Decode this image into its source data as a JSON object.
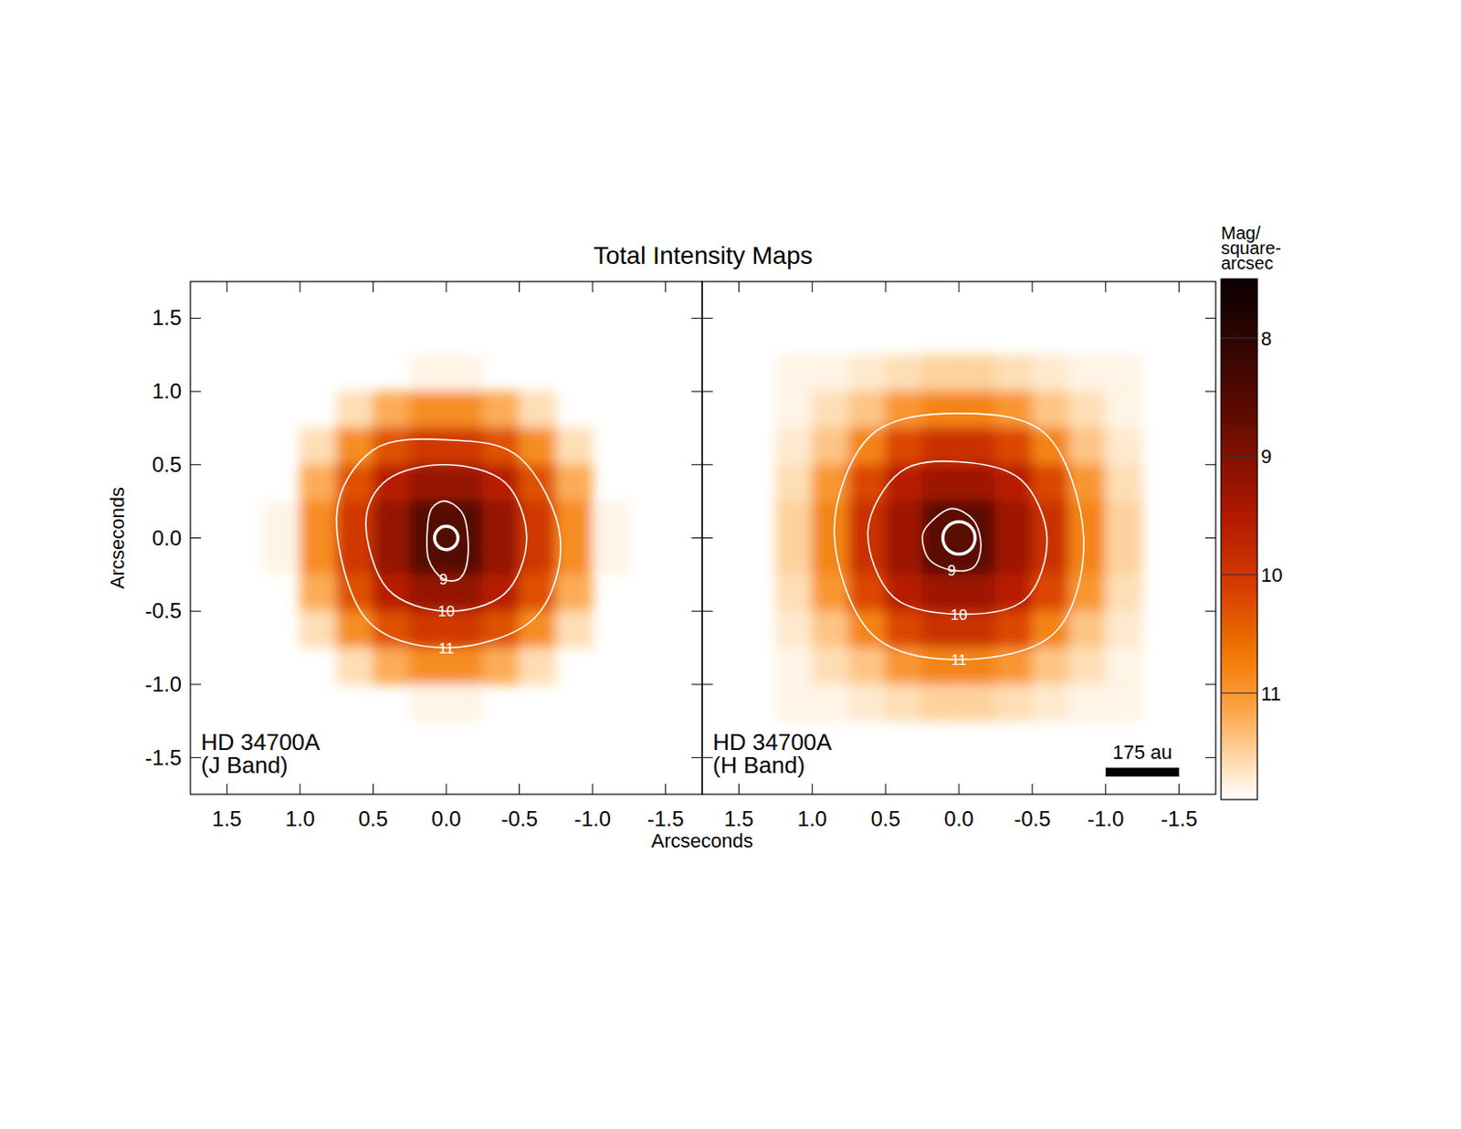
{
  "chart_data": {
    "type": "heatmap",
    "title": "Total Intensity Maps",
    "xlabel": "Arcseconds",
    "ylabel": "Arcseconds",
    "xlim": [
      1.75,
      -1.75
    ],
    "ylim": [
      -1.75,
      1.75
    ],
    "xticks": [
      1.5,
      {
        "value": 1,
        "label": "1.0"
      },
      0.5,
      {
        "value": 0,
        "label": "0.0"
      },
      -0.5,
      {
        "value": -1,
        "label": "-1.0"
      },
      -1.5
    ],
    "yticks": [
      -1.5,
      {
        "value": -1,
        "label": "-1.0"
      },
      -0.5,
      {
        "value": 0,
        "label": "0.0"
      },
      0.5,
      {
        "value": 1,
        "label": "1.0"
      },
      1.5
    ],
    "cell_x": [
      1.625,
      1.375,
      1.125,
      0.875,
      0.625,
      0.375,
      0.125,
      -0.125,
      -0.375,
      -0.625,
      -0.875,
      -1.125,
      -1.375,
      -1.625
    ],
    "cell_y": [
      1.625,
      1.375,
      1.125,
      0.875,
      0.625,
      0.375,
      0.125,
      -0.125,
      -0.375,
      -0.625,
      -0.875,
      -1.125,
      -1.375,
      -1.625
    ],
    "colorbar": {
      "title": [
        "Mag/",
        "square-",
        "arcsec"
      ],
      "range": [
        7.5,
        11.9
      ],
      "ticks": [
        8,
        9,
        10,
        11
      ]
    },
    "panels": [
      {
        "label": [
          "HD 34700A",
          "(J Band)"
        ],
        "mask_radius": 0.08,
        "cells": [
          [
            null,
            null,
            null,
            null,
            null,
            null,
            null,
            null,
            null,
            null,
            null,
            null,
            null,
            null
          ],
          [
            null,
            null,
            null,
            null,
            null,
            null,
            null,
            null,
            null,
            null,
            null,
            null,
            null,
            null
          ],
          [
            null,
            null,
            null,
            null,
            null,
            null,
            11.8,
            11.8,
            null,
            null,
            null,
            null,
            null,
            null
          ],
          [
            null,
            null,
            null,
            null,
            11.6,
            11.2,
            10.9,
            10.9,
            11.2,
            11.6,
            null,
            null,
            null,
            null
          ],
          [
            null,
            null,
            null,
            11.6,
            10.9,
            10.3,
            10.0,
            10.0,
            10.3,
            10.9,
            11.6,
            null,
            null,
            null
          ],
          [
            null,
            null,
            null,
            11.2,
            10.3,
            9.6,
            9.2,
            9.2,
            9.6,
            10.3,
            11.2,
            null,
            null,
            null
          ],
          [
            null,
            null,
            11.8,
            10.9,
            10.0,
            9.2,
            8.5,
            8.5,
            9.2,
            10.0,
            10.9,
            11.8,
            null,
            null
          ],
          [
            null,
            null,
            11.8,
            10.9,
            10.0,
            9.2,
            8.5,
            8.5,
            9.2,
            10.0,
            10.9,
            11.8,
            null,
            null
          ],
          [
            null,
            null,
            null,
            11.2,
            10.3,
            9.6,
            9.2,
            9.2,
            9.6,
            10.3,
            11.2,
            null,
            null,
            null
          ],
          [
            null,
            null,
            null,
            11.6,
            10.9,
            10.3,
            10.0,
            10.0,
            10.3,
            10.9,
            11.6,
            null,
            null,
            null
          ],
          [
            null,
            null,
            null,
            null,
            11.6,
            11.2,
            10.9,
            10.9,
            11.2,
            11.6,
            null,
            null,
            null,
            null
          ],
          [
            null,
            null,
            null,
            null,
            null,
            null,
            11.8,
            11.8,
            null,
            null,
            null,
            null,
            null,
            null
          ],
          [
            null,
            null,
            null,
            null,
            null,
            null,
            null,
            null,
            null,
            null,
            null,
            null,
            null,
            null
          ],
          [
            null,
            null,
            null,
            null,
            null,
            null,
            null,
            null,
            null,
            null,
            null,
            null,
            null,
            null
          ]
        ],
        "contours": [
          {
            "level": 9,
            "x": [
              0.13,
              0.1,
              0,
              -0.12,
              -0.15,
              -0.1,
              0.02,
              0.12
            ],
            "y": [
              0.05,
              0.2,
              0.25,
              0.15,
              -0.1,
              -0.27,
              -0.28,
              -0.15
            ]
          },
          {
            "level": 10,
            "x": [
              0.55,
              0.4,
              0,
              -0.4,
              -0.55,
              -0.4,
              0,
              0.4
            ],
            "y": [
              0.1,
              0.4,
              0.5,
              0.38,
              0,
              -0.38,
              -0.5,
              -0.35
            ]
          },
          {
            "level": 11,
            "x": [
              0.75,
              0.5,
              0,
              -0.5,
              -0.78,
              -0.6,
              0,
              0.55
            ],
            "y": [
              0.15,
              0.6,
              0.67,
              0.55,
              0,
              -0.55,
              -0.75,
              -0.55
            ]
          }
        ]
      },
      {
        "label": [
          "HD 34700A",
          "(H Band)"
        ],
        "mask_radius": 0.11,
        "scale_bar": {
          "label": "175 au",
          "length": 0.5
        },
        "cells": [
          [
            null,
            null,
            null,
            null,
            null,
            null,
            null,
            null,
            null,
            null,
            null,
            null,
            null,
            null
          ],
          [
            null,
            null,
            null,
            null,
            null,
            null,
            null,
            null,
            null,
            null,
            null,
            null,
            null,
            null
          ],
          [
            null,
            null,
            11.8,
            11.8,
            11.7,
            11.6,
            11.5,
            11.5,
            11.6,
            11.7,
            11.8,
            11.8,
            null,
            null
          ],
          [
            null,
            null,
            11.8,
            11.6,
            11.4,
            11.0,
            10.8,
            10.8,
            11.0,
            11.4,
            11.6,
            11.8,
            null,
            null
          ],
          [
            null,
            null,
            11.7,
            11.4,
            10.8,
            10.2,
            9.9,
            9.9,
            10.2,
            10.8,
            11.4,
            11.7,
            null,
            null
          ],
          [
            null,
            null,
            11.6,
            11.0,
            10.2,
            9.6,
            9.3,
            9.3,
            9.6,
            10.2,
            11.0,
            11.6,
            null,
            null
          ],
          [
            null,
            null,
            11.5,
            10.8,
            9.9,
            9.3,
            8.6,
            8.6,
            9.3,
            9.9,
            10.8,
            11.5,
            null,
            null
          ],
          [
            null,
            null,
            11.5,
            10.8,
            9.9,
            9.3,
            8.6,
            8.6,
            9.3,
            9.9,
            10.8,
            11.5,
            null,
            null
          ],
          [
            null,
            null,
            11.6,
            11.0,
            10.2,
            9.6,
            9.3,
            9.3,
            9.6,
            10.2,
            11.0,
            11.6,
            null,
            null
          ],
          [
            null,
            null,
            11.7,
            11.4,
            10.8,
            10.2,
            9.9,
            9.9,
            10.2,
            10.8,
            11.4,
            11.7,
            null,
            null
          ],
          [
            null,
            null,
            11.8,
            11.6,
            11.4,
            11.0,
            10.8,
            10.8,
            11.0,
            11.4,
            11.6,
            11.8,
            null,
            null
          ],
          [
            null,
            null,
            11.8,
            11.8,
            11.7,
            11.6,
            11.5,
            11.5,
            11.6,
            11.7,
            11.8,
            11.8,
            null,
            null
          ],
          [
            null,
            null,
            null,
            null,
            null,
            null,
            null,
            null,
            null,
            null,
            null,
            null,
            null,
            null
          ],
          [
            null,
            null,
            null,
            null,
            null,
            null,
            null,
            null,
            null,
            null,
            null,
            null,
            null,
            null
          ]
        ],
        "contours": [
          {
            "level": 9,
            "x": [
              0.2,
              0.05,
              -0.1,
              -0.15,
              -0.1,
              0.05,
              0.2,
              0.25
            ],
            "y": [
              0.1,
              0.2,
              0.12,
              -0.05,
              -0.2,
              -0.22,
              -0.15,
              0
            ]
          },
          {
            "level": 10,
            "x": [
              0.62,
              0.4,
              0,
              -0.42,
              -0.6,
              -0.45,
              0,
              0.45
            ],
            "y": [
              0.05,
              0.45,
              0.52,
              0.4,
              0,
              -0.42,
              -0.52,
              -0.4
            ]
          },
          {
            "level": 11,
            "x": [
              0.85,
              0.6,
              0,
              -0.6,
              -0.85,
              -0.65,
              0,
              0.6
            ],
            "y": [
              0.05,
              0.7,
              0.85,
              0.7,
              0,
              -0.65,
              -0.83,
              -0.65
            ]
          }
        ]
      }
    ]
  }
}
